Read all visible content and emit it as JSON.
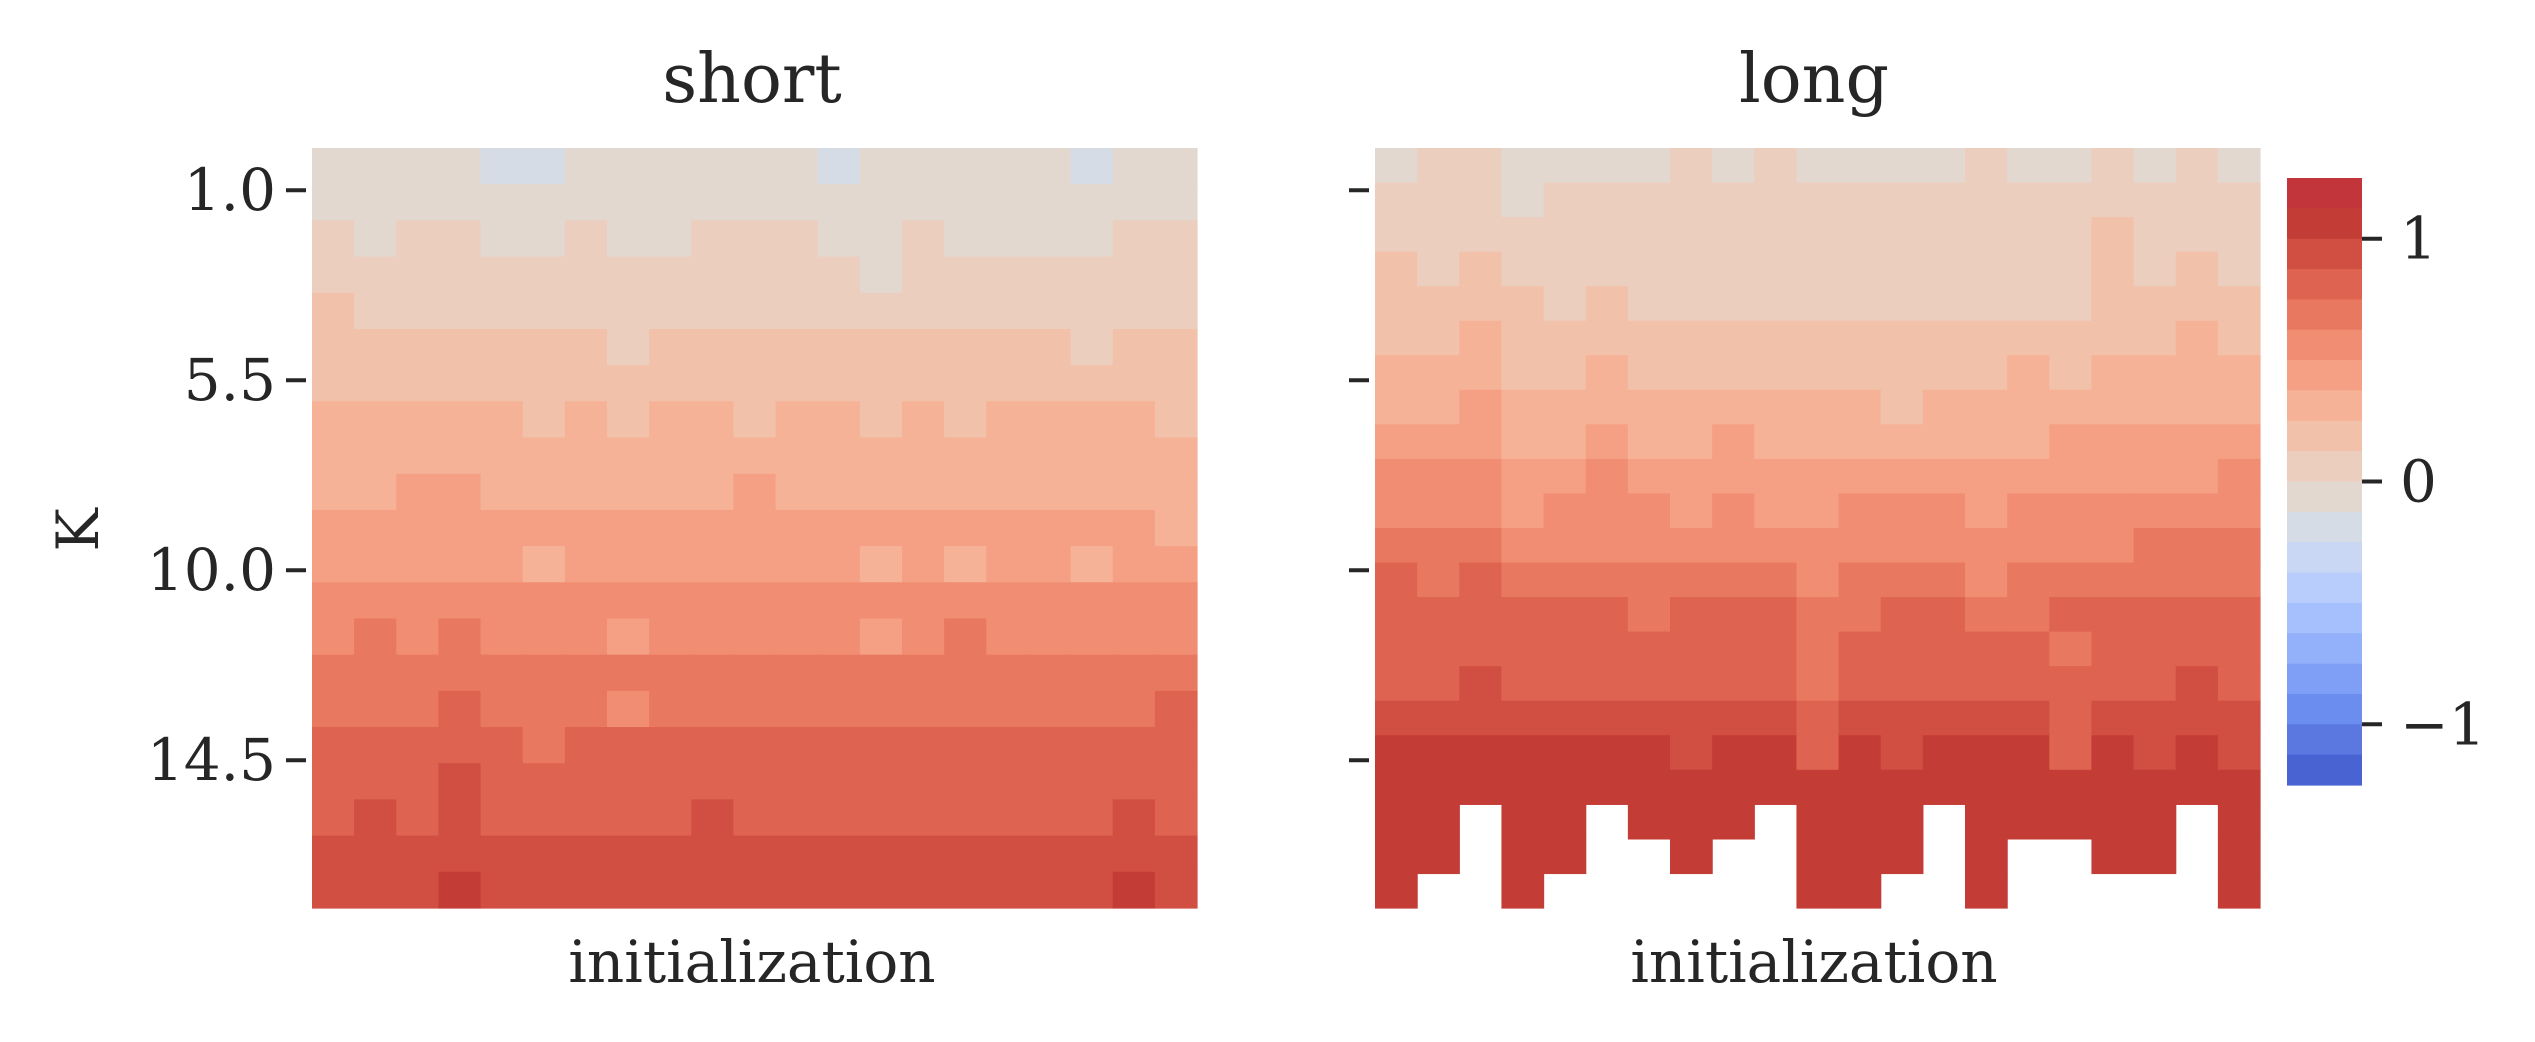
{
  "chart_data": [
    {
      "type": "heatmap",
      "title": "short",
      "xlabel": "initialization",
      "ylabel": "K",
      "n_cols": 21,
      "yrange": [
        0,
        18
      ],
      "yticks": [
        1.0,
        5.5,
        10.0,
        14.5
      ],
      "ytick_labels": [
        "1.0",
        "5.5",
        "10.0",
        "14.5"
      ],
      "show_ytick_labels": true,
      "column_values": [
        [
          -0.08,
          -0.08,
          -0.08,
          -0.08,
          -0.08,
          -0.08,
          -0.08,
          -0.08,
          -0.08,
          -0.08,
          -0.08,
          -0.08,
          -0.08,
          -0.08,
          -0.08,
          -0.08,
          -0.08,
          -0.08,
          -0.08,
          -0.08,
          -0.08,
          -0.08,
          -0.08,
          -0.08,
          -0.08,
          -0.08,
          -0.08,
          -0.08,
          -0.08,
          -0.08,
          -0.08,
          -0.08,
          -0.08,
          -0.08,
          -0.08,
          -0.08,
          -0.08,
          -0.08,
          -0.08,
          -0.08,
          -0.08,
          -0.08,
          -0.08,
          -0.08,
          -0.08,
          -0.08,
          -0.08,
          -0.08,
          -0.08,
          -0.08,
          -0.08,
          -0.08,
          -0.08,
          -0.08,
          -0.08,
          -0.08,
          -0.08,
          -0.08,
          -0.08,
          -0.08,
          -0.08,
          -0.08,
          -0.08,
          -0.08,
          -0.08,
          -0.08,
          -0.08,
          -0.08,
          -0.08,
          -0.08,
          -0.08,
          -0.08,
          -0.08,
          -0.08,
          -0.08,
          -0.08,
          -0.08,
          -0.08,
          -0.08,
          -0.08,
          -0.08,
          -0.08,
          -0.08,
          -0.08,
          -0.08,
          -0.08,
          -0.08,
          -0.08,
          -0.08,
          -0.08,
          -0.08,
          -0.08,
          -0.08,
          -0.08,
          -0.08,
          -0.08,
          -0.08,
          -0.08,
          -0.08,
          -0.08,
          -0.08,
          -0.08,
          -0.08,
          -0.08,
          -0.08,
          -0.08,
          -0.08,
          -0.08,
          -0.08,
          -0.08
        ]
      ],
      "values": [
        [
          -0.08,
          -0.08,
          -0.08,
          -0.08,
          -0.18,
          -0.18,
          -0.08,
          -0.08,
          -0.08,
          -0.08,
          -0.08,
          -0.08,
          -0.18,
          -0.08,
          -0.08,
          -0.08,
          -0.08,
          -0.08,
          -0.18,
          -0.08,
          -0.08
        ],
        [
          -0.08,
          -0.08,
          -0.08,
          -0.08,
          -0.08,
          -0.08,
          -0.08,
          -0.08,
          -0.08,
          -0.08,
          -0.08,
          -0.08,
          -0.08,
          -0.08,
          -0.08,
          -0.08,
          -0.08,
          -0.08,
          -0.08,
          -0.08,
          -0.08
        ],
        [
          0.05,
          -0.08,
          0.05,
          0.05,
          -0.08,
          -0.08,
          0.05,
          -0.08,
          -0.08,
          0.05,
          0.05,
          0.05,
          -0.08,
          -0.08,
          0.05,
          -0.08,
          -0.08,
          -0.08,
          -0.08,
          0.05,
          0.05
        ],
        [
          0.05,
          0.05,
          0.05,
          0.05,
          0.05,
          0.05,
          0.05,
          0.05,
          0.05,
          0.05,
          0.05,
          0.05,
          0.05,
          -0.08,
          0.05,
          0.05,
          0.05,
          0.05,
          0.05,
          0.05,
          0.05
        ],
        [
          0.15,
          0.05,
          0.05,
          0.05,
          0.05,
          0.05,
          0.05,
          0.05,
          0.05,
          0.05,
          0.05,
          0.05,
          0.05,
          0.05,
          0.05,
          0.05,
          0.05,
          0.05,
          0.05,
          0.05,
          0.05
        ],
        [
          0.15,
          0.15,
          0.15,
          0.15,
          0.15,
          0.15,
          0.15,
          0.05,
          0.15,
          0.15,
          0.15,
          0.15,
          0.15,
          0.15,
          0.15,
          0.15,
          0.15,
          0.15,
          0.05,
          0.15,
          0.15
        ],
        [
          0.15,
          0.15,
          0.15,
          0.15,
          0.15,
          0.15,
          0.15,
          0.15,
          0.15,
          0.15,
          0.15,
          0.15,
          0.15,
          0.15,
          0.15,
          0.15,
          0.15,
          0.15,
          0.15,
          0.15,
          0.15
        ],
        [
          0.3,
          0.3,
          0.3,
          0.3,
          0.3,
          0.15,
          0.3,
          0.15,
          0.3,
          0.3,
          0.15,
          0.3,
          0.3,
          0.15,
          0.3,
          0.15,
          0.3,
          0.3,
          0.3,
          0.3,
          0.15
        ],
        [
          0.3,
          0.3,
          0.3,
          0.3,
          0.3,
          0.3,
          0.3,
          0.3,
          0.3,
          0.3,
          0.3,
          0.3,
          0.3,
          0.3,
          0.3,
          0.3,
          0.3,
          0.3,
          0.3,
          0.3,
          0.3
        ],
        [
          0.3,
          0.3,
          0.42,
          0.42,
          0.3,
          0.3,
          0.3,
          0.3,
          0.3,
          0.3,
          0.42,
          0.3,
          0.3,
          0.3,
          0.3,
          0.3,
          0.3,
          0.3,
          0.3,
          0.3,
          0.3
        ],
        [
          0.42,
          0.42,
          0.42,
          0.42,
          0.42,
          0.42,
          0.42,
          0.42,
          0.42,
          0.42,
          0.42,
          0.42,
          0.42,
          0.42,
          0.42,
          0.42,
          0.42,
          0.42,
          0.42,
          0.42,
          0.3
        ],
        [
          0.42,
          0.42,
          0.42,
          0.42,
          0.42,
          0.3,
          0.42,
          0.42,
          0.42,
          0.42,
          0.42,
          0.42,
          0.42,
          0.3,
          0.42,
          0.3,
          0.42,
          0.42,
          0.3,
          0.42,
          0.42
        ],
        [
          0.55,
          0.55,
          0.55,
          0.55,
          0.55,
          0.55,
          0.55,
          0.55,
          0.55,
          0.55,
          0.55,
          0.55,
          0.55,
          0.55,
          0.55,
          0.55,
          0.55,
          0.55,
          0.55,
          0.55,
          0.55
        ],
        [
          0.55,
          0.68,
          0.55,
          0.68,
          0.55,
          0.55,
          0.55,
          0.42,
          0.55,
          0.55,
          0.55,
          0.55,
          0.55,
          0.42,
          0.55,
          0.68,
          0.55,
          0.55,
          0.55,
          0.55,
          0.55
        ],
        [
          0.68,
          0.68,
          0.68,
          0.68,
          0.68,
          0.68,
          0.68,
          0.68,
          0.68,
          0.68,
          0.68,
          0.68,
          0.68,
          0.68,
          0.68,
          0.68,
          0.68,
          0.68,
          0.68,
          0.68,
          0.68
        ],
        [
          0.68,
          0.68,
          0.68,
          0.8,
          0.68,
          0.68,
          0.68,
          0.55,
          0.68,
          0.68,
          0.68,
          0.68,
          0.68,
          0.68,
          0.68,
          0.68,
          0.68,
          0.68,
          0.68,
          0.68,
          0.8
        ],
        [
          0.8,
          0.8,
          0.8,
          0.8,
          0.8,
          0.68,
          0.8,
          0.8,
          0.8,
          0.8,
          0.8,
          0.8,
          0.8,
          0.8,
          0.8,
          0.8,
          0.8,
          0.8,
          0.8,
          0.8,
          0.8
        ],
        [
          0.8,
          0.8,
          0.8,
          0.92,
          0.8,
          0.8,
          0.8,
          0.8,
          0.8,
          0.8,
          0.8,
          0.8,
          0.8,
          0.8,
          0.8,
          0.8,
          0.8,
          0.8,
          0.8,
          0.8,
          0.8
        ],
        [
          0.8,
          0.92,
          0.8,
          0.92,
          0.8,
          0.8,
          0.8,
          0.8,
          0.8,
          0.92,
          0.8,
          0.8,
          0.8,
          0.8,
          0.8,
          0.8,
          0.8,
          0.8,
          0.8,
          0.92,
          0.8
        ],
        [
          0.92,
          0.92,
          0.92,
          0.92,
          0.92,
          0.92,
          0.92,
          0.92,
          0.92,
          0.92,
          0.92,
          0.92,
          0.92,
          0.92,
          0.92,
          0.92,
          0.92,
          0.92,
          0.92,
          0.92,
          0.92
        ],
        [
          0.92,
          0.92,
          0.92,
          1.05,
          0.92,
          0.92,
          0.92,
          0.92,
          0.92,
          0.92,
          0.92,
          0.92,
          0.92,
          0.92,
          0.92,
          0.92,
          0.92,
          0.92,
          0.92,
          1.05,
          0.92
        ]
      ]
    },
    {
      "type": "heatmap",
      "title": "long",
      "xlabel": "initialization",
      "ylabel": "",
      "n_cols": 21,
      "yrange": [
        0,
        18
      ],
      "yticks": [
        1.0,
        5.5,
        10.0,
        14.5
      ],
      "ytick_labels": [
        "1.0",
        "5.5",
        "10.0",
        "14.5"
      ],
      "show_ytick_labels": false,
      "values": [
        [
          -0.08,
          0.05,
          0.05,
          -0.08,
          -0.08,
          -0.08,
          -0.08,
          0.05,
          -0.08,
          0.05,
          -0.08,
          -0.08,
          -0.08,
          -0.08,
          0.05,
          -0.08,
          -0.08,
          0.05,
          -0.08,
          0.05,
          -0.08
        ],
        [
          0.05,
          0.05,
          0.05,
          -0.08,
          0.05,
          0.05,
          0.05,
          0.05,
          0.05,
          0.05,
          0.05,
          0.05,
          0.05,
          0.05,
          0.05,
          0.05,
          0.05,
          0.05,
          0.05,
          0.05,
          0.05
        ],
        [
          0.05,
          0.05,
          0.05,
          0.05,
          0.05,
          0.05,
          0.05,
          0.05,
          0.05,
          0.05,
          0.05,
          0.05,
          0.05,
          0.05,
          0.05,
          0.05,
          0.05,
          0.15,
          0.05,
          0.05,
          0.05
        ],
        [
          0.15,
          0.05,
          0.15,
          0.05,
          0.05,
          0.05,
          0.05,
          0.05,
          0.05,
          0.05,
          0.05,
          0.05,
          0.05,
          0.05,
          0.05,
          0.05,
          0.05,
          0.15,
          0.05,
          0.15,
          0.05
        ],
        [
          0.15,
          0.15,
          0.15,
          0.15,
          0.05,
          0.15,
          0.05,
          0.05,
          0.05,
          0.05,
          0.05,
          0.05,
          0.05,
          0.05,
          0.05,
          0.05,
          0.05,
          0.15,
          0.15,
          0.15,
          0.15
        ],
        [
          0.15,
          0.15,
          0.3,
          0.15,
          0.15,
          0.15,
          0.15,
          0.15,
          0.15,
          0.15,
          0.15,
          0.15,
          0.15,
          0.15,
          0.15,
          0.15,
          0.15,
          0.15,
          0.15,
          0.3,
          0.15
        ],
        [
          0.3,
          0.3,
          0.3,
          0.15,
          0.15,
          0.3,
          0.15,
          0.15,
          0.15,
          0.15,
          0.15,
          0.15,
          0.15,
          0.15,
          0.15,
          0.3,
          0.15,
          0.3,
          0.3,
          0.3,
          0.3
        ],
        [
          0.3,
          0.3,
          0.42,
          0.3,
          0.3,
          0.3,
          0.3,
          0.3,
          0.3,
          0.3,
          0.3,
          0.3,
          0.15,
          0.3,
          0.3,
          0.3,
          0.3,
          0.3,
          0.3,
          0.3,
          0.3
        ],
        [
          0.42,
          0.42,
          0.42,
          0.3,
          0.3,
          0.42,
          0.3,
          0.3,
          0.42,
          0.3,
          0.3,
          0.3,
          0.3,
          0.3,
          0.3,
          0.3,
          0.42,
          0.42,
          0.42,
          0.42,
          0.42
        ],
        [
          0.55,
          0.55,
          0.55,
          0.42,
          0.42,
          0.55,
          0.42,
          0.42,
          0.42,
          0.42,
          0.42,
          0.42,
          0.42,
          0.42,
          0.42,
          0.42,
          0.42,
          0.42,
          0.42,
          0.42,
          0.55
        ],
        [
          0.55,
          0.55,
          0.55,
          0.42,
          0.55,
          0.55,
          0.55,
          0.42,
          0.55,
          0.42,
          0.42,
          0.55,
          0.55,
          0.55,
          0.42,
          0.55,
          0.55,
          0.55,
          0.55,
          0.55,
          0.55
        ],
        [
          0.68,
          0.68,
          0.68,
          0.55,
          0.55,
          0.55,
          0.55,
          0.55,
          0.55,
          0.55,
          0.55,
          0.55,
          0.55,
          0.55,
          0.55,
          0.55,
          0.55,
          0.55,
          0.68,
          0.68,
          0.68
        ],
        [
          0.8,
          0.68,
          0.8,
          0.68,
          0.68,
          0.68,
          0.68,
          0.68,
          0.68,
          0.68,
          0.55,
          0.68,
          0.68,
          0.68,
          0.55,
          0.68,
          0.68,
          0.68,
          0.68,
          0.68,
          0.68
        ],
        [
          0.8,
          0.8,
          0.8,
          0.8,
          0.8,
          0.8,
          0.68,
          0.8,
          0.8,
          0.8,
          0.68,
          0.68,
          0.8,
          0.8,
          0.68,
          0.68,
          0.8,
          0.8,
          0.8,
          0.8,
          0.8
        ],
        [
          0.8,
          0.8,
          0.8,
          0.8,
          0.8,
          0.8,
          0.8,
          0.8,
          0.8,
          0.8,
          0.68,
          0.8,
          0.8,
          0.8,
          0.8,
          0.8,
          0.68,
          0.8,
          0.8,
          0.8,
          0.8
        ],
        [
          0.8,
          0.8,
          0.92,
          0.8,
          0.8,
          0.8,
          0.8,
          0.8,
          0.8,
          0.8,
          0.68,
          0.8,
          0.8,
          0.8,
          0.8,
          0.8,
          0.8,
          0.8,
          0.8,
          0.92,
          0.8
        ],
        [
          0.92,
          0.92,
          0.92,
          0.92,
          0.92,
          0.92,
          0.92,
          0.92,
          0.92,
          0.92,
          0.8,
          0.92,
          0.92,
          0.92,
          0.92,
          0.92,
          0.8,
          0.92,
          0.92,
          0.92,
          0.92
        ],
        [
          1.05,
          1.05,
          1.05,
          1.05,
          1.05,
          1.05,
          1.05,
          0.92,
          1.05,
          1.05,
          0.8,
          1.05,
          0.92,
          1.05,
          1.05,
          1.05,
          0.8,
          1.05,
          0.92,
          1.05,
          0.92
        ],
        [
          1.05,
          1.05,
          1.05,
          1.05,
          1.05,
          1.05,
          1.05,
          1.05,
          1.05,
          1.05,
          1.05,
          1.05,
          1.05,
          1.05,
          1.05,
          1.05,
          1.05,
          1.05,
          1.05,
          1.05,
          1.05
        ],
        [
          1.05,
          1.05,
          null,
          1.05,
          1.05,
          null,
          1.05,
          1.05,
          1.05,
          null,
          1.05,
          1.05,
          1.05,
          null,
          1.05,
          1.05,
          1.05,
          1.05,
          1.05,
          null,
          1.05
        ],
        [
          1.05,
          1.05,
          null,
          1.05,
          1.05,
          null,
          null,
          1.05,
          null,
          null,
          1.05,
          1.05,
          1.05,
          null,
          1.05,
          null,
          null,
          1.05,
          1.05,
          null,
          1.05
        ],
        [
          1.05,
          null,
          null,
          1.05,
          null,
          null,
          null,
          null,
          null,
          null,
          1.05,
          1.05,
          null,
          null,
          1.05,
          null,
          null,
          null,
          null,
          null,
          1.05
        ]
      ]
    }
  ],
  "colorbar": {
    "vmin": -1.25,
    "vmax": 1.25,
    "levels": 20,
    "ticks": [
      1,
      0,
      -1
    ],
    "tick_labels": [
      "1",
      "0",
      "−1"
    ],
    "colormap": "coolwarm",
    "colors": [
      "#4a63d3",
      "#5a78e0",
      "#6c8df0",
      "#7f9ff6",
      "#93b1fb",
      "#a6c0fd",
      "#b8cdfb",
      "#c9d6f4",
      "#d5dce6",
      "#e3d8d0",
      "#eccebf",
      "#f2c1aa",
      "#f6b297",
      "#f5a084",
      "#f08d72",
      "#e97861",
      "#de6350",
      "#d14e42",
      "#c43c36",
      "#c2353a"
    ]
  }
}
